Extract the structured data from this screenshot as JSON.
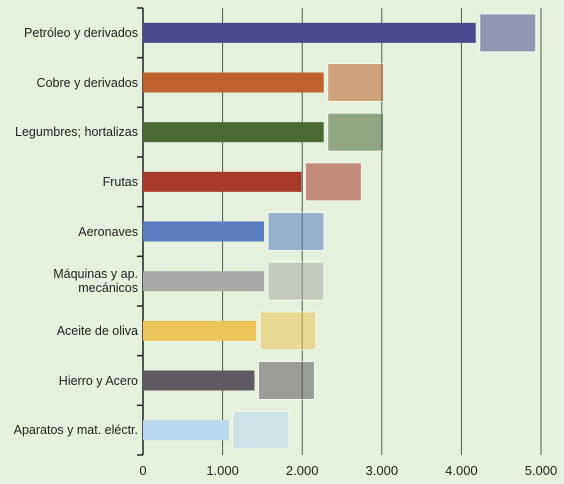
{
  "chart_data": {
    "type": "bar",
    "orientation": "horizontal",
    "categories": [
      "Petróleo y derivados",
      "Cobre y derivados",
      "Legumbres; hortalizas",
      "Frutas",
      "Aeronaves",
      "Máquinas y ap.\nmecánicos",
      "Aceite de oliva",
      "Hierro y Acero",
      "Aparatos y mat. eléctr."
    ],
    "values": [
      4180,
      2270,
      2270,
      1990,
      1520,
      1520,
      1420,
      1400,
      1080
    ],
    "colors": [
      "#4b4a8f",
      "#c0622e",
      "#4a6a36",
      "#a93a2b",
      "#5b7fc1",
      "#a9a9a9",
      "#eec55a",
      "#5f5a61",
      "#b9d8ef"
    ],
    "xlim": [
      0,
      5000
    ],
    "xticks": [
      0,
      {
        "value": 1000,
        "label": "1.000"
      },
      {
        "value": 2000,
        "label": "2.000"
      },
      {
        "value": 3000,
        "label": "3.000"
      },
      {
        "value": 4000,
        "label": "4.000"
      },
      {
        "value": 5000,
        "label": "5.000"
      }
    ],
    "grid": true
  }
}
